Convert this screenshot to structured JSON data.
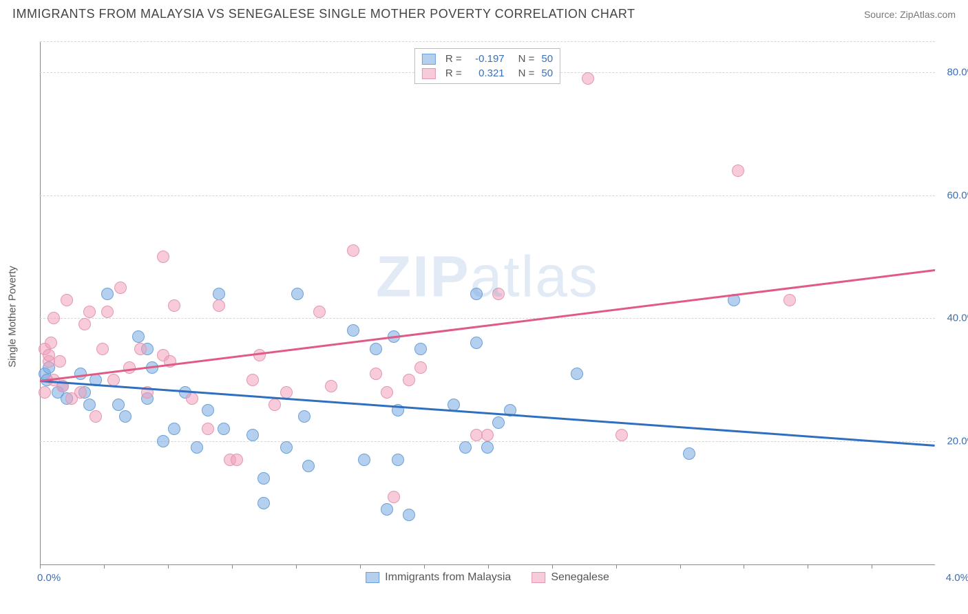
{
  "header": {
    "title": "IMMIGRANTS FROM MALAYSIA VS SENEGALESE SINGLE MOTHER POVERTY CORRELATION CHART",
    "source_prefix": "Source: ",
    "source_name": "ZipAtlas.com"
  },
  "chart": {
    "type": "scatter",
    "ylabel": "Single Mother Poverty",
    "watermark": "ZIPatlas",
    "background_color": "#ffffff",
    "grid_color": "#d5d5d5",
    "axis_color": "#888888",
    "tick_label_color": "#3b6fb6",
    "xlim": [
      0.0,
      4.0
    ],
    "ylim": [
      0.0,
      85.0
    ],
    "yticks": [
      {
        "value": 20.0,
        "label": "20.0%"
      },
      {
        "value": 40.0,
        "label": "40.0%"
      },
      {
        "value": 60.0,
        "label": "60.0%"
      },
      {
        "value": 80.0,
        "label": "80.0%"
      }
    ],
    "xticks_minor_step": 0.286,
    "xlabels": [
      {
        "value": 0.0,
        "label": "0.0%"
      },
      {
        "value": 4.0,
        "label": "4.0%"
      }
    ],
    "series": [
      {
        "name": "Immigrants from Malaysia",
        "fill_color": "rgba(120,170,225,0.55)",
        "stroke_color": "#6aa0d8",
        "trend_color": "#2f6fc0",
        "marker_radius": 9,
        "trend": {
          "x1": 0.0,
          "y1": 30.0,
          "x2": 4.0,
          "y2": 19.5
        },
        "R": "-0.197",
        "N": "50",
        "points": [
          [
            0.02,
            31
          ],
          [
            0.03,
            30
          ],
          [
            0.04,
            32
          ],
          [
            0.08,
            28
          ],
          [
            0.1,
            29
          ],
          [
            0.12,
            27
          ],
          [
            0.18,
            31
          ],
          [
            0.2,
            28
          ],
          [
            0.22,
            26
          ],
          [
            0.25,
            30
          ],
          [
            0.3,
            44
          ],
          [
            0.35,
            26
          ],
          [
            0.38,
            24
          ],
          [
            0.44,
            37
          ],
          [
            0.48,
            27
          ],
          [
            0.55,
            20
          ],
          [
            0.6,
            22
          ],
          [
            0.65,
            28
          ],
          [
            0.7,
            19
          ],
          [
            0.75,
            25
          ],
          [
            0.8,
            44
          ],
          [
            0.82,
            22
          ],
          [
            0.95,
            21
          ],
          [
            1.0,
            14
          ],
          [
            1.0,
            10
          ],
          [
            1.1,
            19
          ],
          [
            1.15,
            44
          ],
          [
            1.18,
            24
          ],
          [
            1.2,
            16
          ],
          [
            1.4,
            38
          ],
          [
            1.45,
            17
          ],
          [
            1.5,
            35
          ],
          [
            1.55,
            9
          ],
          [
            1.58,
            37
          ],
          [
            1.6,
            25
          ],
          [
            1.6,
            17
          ],
          [
            1.65,
            8
          ],
          [
            1.7,
            35
          ],
          [
            1.85,
            26
          ],
          [
            1.95,
            44
          ],
          [
            1.95,
            36
          ],
          [
            2.05,
            23
          ],
          [
            2.1,
            25
          ],
          [
            2.0,
            19
          ],
          [
            1.9,
            19
          ],
          [
            2.4,
            31
          ],
          [
            2.9,
            18
          ],
          [
            3.1,
            43
          ],
          [
            0.5,
            32
          ],
          [
            0.48,
            35
          ]
        ]
      },
      {
        "name": "Senegalese",
        "fill_color": "rgba(240,160,185,0.55)",
        "stroke_color": "#e497af",
        "trend_color": "#e05b84",
        "marker_radius": 9,
        "trend": {
          "x1": 0.0,
          "y1": 30.0,
          "x2": 4.0,
          "y2": 48.0
        },
        "R": "0.321",
        "N": "50",
        "points": [
          [
            0.02,
            35
          ],
          [
            0.04,
            33
          ],
          [
            0.04,
            34
          ],
          [
            0.02,
            28
          ],
          [
            0.05,
            36
          ],
          [
            0.06,
            40
          ],
          [
            0.09,
            33
          ],
          [
            0.1,
            29
          ],
          [
            0.12,
            43
          ],
          [
            0.14,
            27
          ],
          [
            0.2,
            39
          ],
          [
            0.22,
            41
          ],
          [
            0.25,
            24
          ],
          [
            0.28,
            35
          ],
          [
            0.3,
            41
          ],
          [
            0.33,
            30
          ],
          [
            0.36,
            45
          ],
          [
            0.4,
            32
          ],
          [
            0.45,
            35
          ],
          [
            0.48,
            28
          ],
          [
            0.55,
            50
          ],
          [
            0.55,
            34
          ],
          [
            0.58,
            33
          ],
          [
            0.6,
            42
          ],
          [
            0.68,
            27
          ],
          [
            0.75,
            22
          ],
          [
            0.8,
            42
          ],
          [
            0.85,
            17
          ],
          [
            0.88,
            17
          ],
          [
            0.95,
            30
          ],
          [
            0.98,
            34
          ],
          [
            1.05,
            26
          ],
          [
            1.25,
            41
          ],
          [
            1.3,
            29
          ],
          [
            1.4,
            51
          ],
          [
            1.5,
            31
          ],
          [
            1.58,
            11
          ],
          [
            1.65,
            30
          ],
          [
            1.7,
            32
          ],
          [
            1.95,
            21
          ],
          [
            2.05,
            44
          ],
          [
            2.0,
            21
          ],
          [
            2.45,
            79
          ],
          [
            2.6,
            21
          ],
          [
            3.12,
            64
          ],
          [
            3.35,
            43
          ],
          [
            0.06,
            30
          ],
          [
            0.18,
            28
          ],
          [
            1.1,
            28
          ],
          [
            1.55,
            28
          ]
        ]
      }
    ],
    "legend_bottom": [
      {
        "label": "Immigrants from Malaysia",
        "fill": "rgba(120,170,225,0.55)",
        "stroke": "#6aa0d8"
      },
      {
        "label": "Senegalese",
        "fill": "rgba(240,160,185,0.55)",
        "stroke": "#e497af"
      }
    ]
  }
}
